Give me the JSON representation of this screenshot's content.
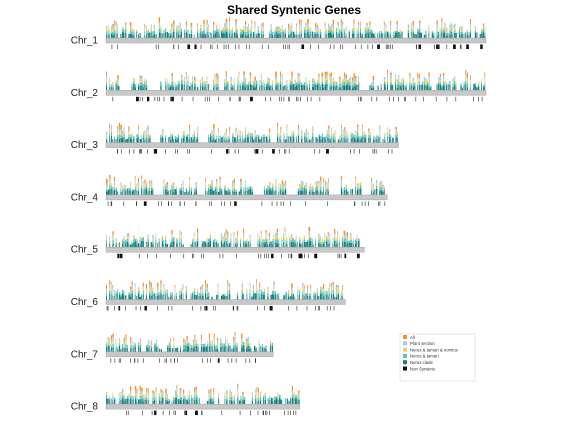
{
  "chart_data": {
    "type": "bar",
    "title": "Shared Syntenic Genes",
    "chromosomes": [
      {
        "name": "Chr_1",
        "relative_length": 1.0,
        "seed": 11,
        "gaps": [
          [
            0.09,
            0.098
          ],
          [
            0.42,
            0.426
          ],
          [
            0.78,
            0.786
          ]
        ]
      },
      {
        "name": "Chr_2",
        "relative_length": 1.0,
        "seed": 23,
        "gaps": [
          [
            0.04,
            0.06
          ],
          [
            0.11,
            0.14
          ],
          [
            0.295,
            0.31
          ],
          [
            0.665,
            0.69
          ]
        ]
      },
      {
        "name": "Chr_3",
        "relative_length": 0.77,
        "seed": 37,
        "gaps": [
          [
            0.15,
            0.175
          ],
          [
            0.32,
            0.345
          ],
          [
            0.56,
            0.58
          ]
        ]
      },
      {
        "name": "Chr_4",
        "relative_length": 0.74,
        "seed": 41,
        "gaps": [
          [
            0.17,
            0.2
          ],
          [
            0.32,
            0.35
          ],
          [
            0.52,
            0.56
          ],
          [
            0.64,
            0.68
          ],
          [
            0.79,
            0.83
          ],
          [
            0.905,
            0.94
          ]
        ]
      },
      {
        "name": "Chr_5",
        "relative_length": 0.68,
        "seed": 53,
        "gaps": [
          [
            0.3,
            0.325
          ],
          [
            0.56,
            0.58
          ]
        ]
      },
      {
        "name": "Chr_6",
        "relative_length": 0.63,
        "seed": 67,
        "gaps": [
          [
            0.52,
            0.545
          ]
        ]
      },
      {
        "name": "Chr_7",
        "relative_length": 0.44,
        "seed": 79,
        "gaps": [
          [
            0.33,
            0.36
          ],
          [
            0.78,
            0.8
          ]
        ]
      },
      {
        "name": "Chr_8",
        "relative_length": 0.51,
        "seed": 83,
        "gaps": [
          [
            0.48,
            0.52
          ],
          [
            0.715,
            0.75
          ]
        ]
      }
    ],
    "legend": [
      {
        "label": "All",
        "color": "#F28E2B"
      },
      {
        "label": "Plant section",
        "color": "#A0CBE8"
      },
      {
        "label": "Nerus & tamari & nomius",
        "color": "#F1CE63"
      },
      {
        "label": "Nerus & tamari",
        "color": "#59C3C3"
      },
      {
        "label": "Nerus clade",
        "color": "#17817E"
      },
      {
        "label": "Non Syntenic",
        "color": "#111111"
      }
    ],
    "axis_color": "#C8C8C8",
    "xlabel": "",
    "ylabel": ""
  }
}
